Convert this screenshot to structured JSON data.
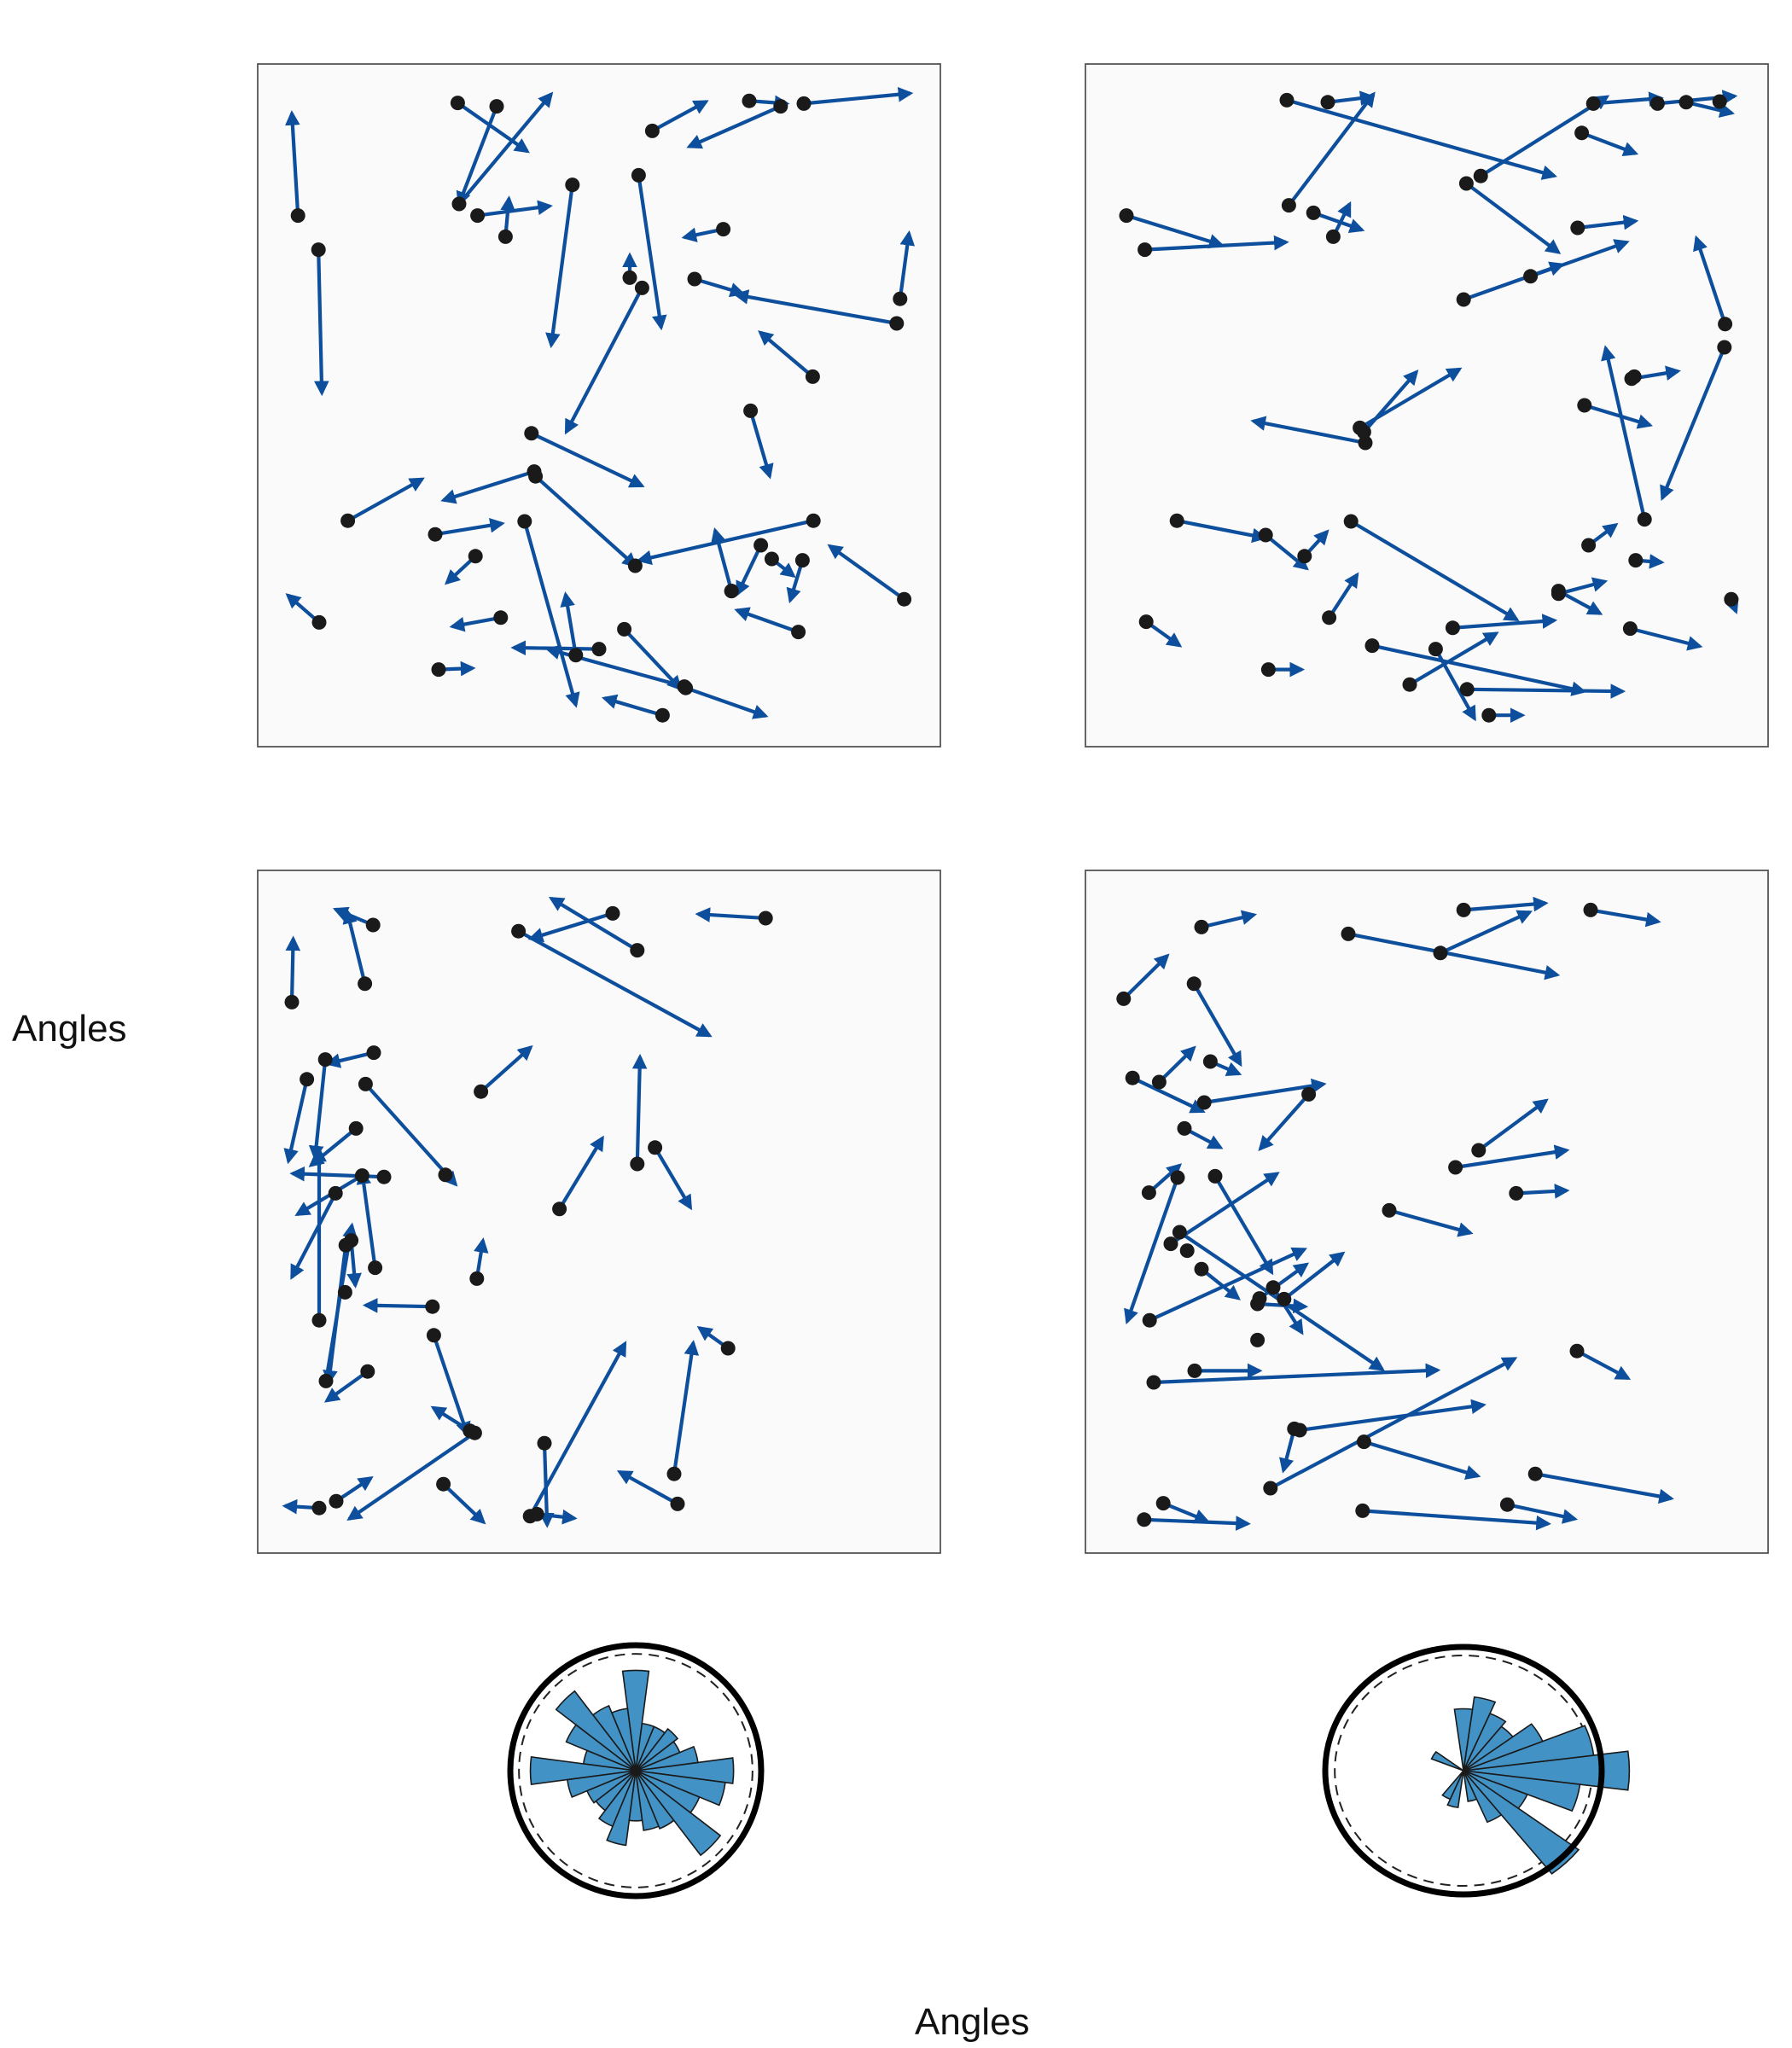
{
  "figure": {
    "ylabel": "Angles",
    "xlabel": "Angles"
  },
  "colors": {
    "arrow": "#0d4f9c",
    "dot": "#1a1a1a",
    "panel_bg": "#fafafa",
    "panel_border": "#555555",
    "rose_fill": "#4292c6",
    "rose_edge": "#1a1a1a",
    "rose_ring": "#000000"
  },
  "chart_data": [
    {
      "type": "scatter",
      "panel": "top-left",
      "xlim": [
        0,
        1
      ],
      "ylim": [
        0,
        1
      ],
      "axes_ticks": false,
      "arrows": [
        [
          0.059,
          0.778,
          0.05,
          0.928
        ],
        [
          0.089,
          0.728,
          0.094,
          0.518
        ],
        [
          0.293,
          0.943,
          0.395,
          0.872
        ],
        [
          0.35,
          0.938,
          0.295,
          0.795
        ],
        [
          0.295,
          0.795,
          0.43,
          0.956
        ],
        [
          0.322,
          0.778,
          0.428,
          0.792
        ],
        [
          0.363,
          0.747,
          0.368,
          0.803
        ],
        [
          0.461,
          0.823,
          0.43,
          0.588
        ],
        [
          0.558,
          0.837,
          0.591,
          0.614
        ],
        [
          0.682,
          0.758,
          0.625,
          0.746
        ],
        [
          0.72,
          0.946,
          0.775,
          0.942
        ],
        [
          0.578,
          0.902,
          0.657,
          0.945
        ],
        [
          0.8,
          0.942,
          0.956,
          0.957
        ],
        [
          0.766,
          0.938,
          0.632,
          0.879
        ],
        [
          0.545,
          0.687,
          0.545,
          0.72
        ],
        [
          0.563,
          0.672,
          0.452,
          0.461
        ],
        [
          0.64,
          0.685,
          0.71,
          0.664
        ],
        [
          0.936,
          0.62,
          0.701,
          0.662
        ],
        [
          0.941,
          0.656,
          0.954,
          0.752
        ],
        [
          0.813,
          0.542,
          0.736,
          0.607
        ],
        [
          0.722,
          0.492,
          0.75,
          0.396
        ],
        [
          0.401,
          0.459,
          0.563,
          0.382
        ],
        [
          0.132,
          0.331,
          0.241,
          0.392
        ],
        [
          0.405,
          0.403,
          0.272,
          0.361
        ],
        [
          0.407,
          0.396,
          0.553,
          0.265
        ],
        [
          0.26,
          0.311,
          0.358,
          0.327
        ],
        [
          0.319,
          0.279,
          0.277,
          0.24
        ],
        [
          0.391,
          0.33,
          0.466,
          0.061
        ],
        [
          0.814,
          0.331,
          0.559,
          0.273
        ],
        [
          0.694,
          0.228,
          0.67,
          0.317
        ],
        [
          0.737,
          0.295,
          0.703,
          0.224
        ],
        [
          0.753,
          0.275,
          0.785,
          0.25
        ],
        [
          0.798,
          0.273,
          0.78,
          0.214
        ],
        [
          0.947,
          0.216,
          0.838,
          0.294
        ],
        [
          0.792,
          0.168,
          0.702,
          0.2
        ],
        [
          0.09,
          0.182,
          0.044,
          0.222
        ],
        [
          0.356,
          0.189,
          0.285,
          0.176
        ],
        [
          0.265,
          0.113,
          0.315,
          0.115
        ],
        [
          0.5,
          0.143,
          0.375,
          0.145
        ],
        [
          0.466,
          0.134,
          0.451,
          0.223
        ],
        [
          0.537,
          0.172,
          0.619,
          0.085
        ],
        [
          0.625,
          0.088,
          0.425,
          0.143
        ],
        [
          0.593,
          0.046,
          0.508,
          0.071
        ],
        [
          0.627,
          0.086,
          0.744,
          0.045
        ]
      ],
      "points_only": [
        [
          0.694,
          0.228
        ],
        [
          0.553,
          0.265
        ]
      ]
    },
    {
      "type": "scatter",
      "panel": "top-right",
      "xlim": [
        0,
        1
      ],
      "ylim": [
        0,
        1
      ],
      "axes_ticks": false,
      "arrows": [
        [
          0.295,
          0.947,
          0.687,
          0.836
        ],
        [
          0.355,
          0.944,
          0.42,
          0.952
        ],
        [
          0.298,
          0.793,
          0.422,
          0.956
        ],
        [
          0.558,
          0.825,
          0.693,
          0.724
        ],
        [
          0.744,
          0.942,
          0.843,
          0.95
        ],
        [
          0.579,
          0.836,
          0.764,
          0.952
        ],
        [
          0.838,
          0.942,
          0.951,
          0.953
        ],
        [
          0.88,
          0.944,
          0.947,
          0.928
        ],
        [
          0.727,
          0.899,
          0.806,
          0.869
        ],
        [
          0.06,
          0.778,
          0.199,
          0.735
        ],
        [
          0.087,
          0.728,
          0.294,
          0.739
        ],
        [
          0.334,
          0.782,
          0.405,
          0.757
        ],
        [
          0.363,
          0.747,
          0.387,
          0.795
        ],
        [
          0.721,
          0.76,
          0.806,
          0.77
        ],
        [
          0.652,
          0.689,
          0.793,
          0.739
        ],
        [
          0.554,
          0.655,
          0.698,
          0.706
        ],
        [
          0.937,
          0.619,
          0.895,
          0.745
        ],
        [
          0.936,
          0.585,
          0.845,
          0.364
        ],
        [
          0.8,
          0.539,
          0.868,
          0.55
        ],
        [
          0.731,
          0.5,
          0.827,
          0.471
        ],
        [
          0.819,
          0.333,
          0.762,
          0.584
        ],
        [
          0.408,
          0.461,
          0.485,
          0.549
        ],
        [
          0.41,
          0.445,
          0.246,
          0.477
        ],
        [
          0.402,
          0.467,
          0.548,
          0.553
        ],
        [
          0.134,
          0.331,
          0.262,
          0.306
        ],
        [
          0.264,
          0.31,
          0.324,
          0.261
        ],
        [
          0.321,
          0.279,
          0.354,
          0.315
        ],
        [
          0.389,
          0.33,
          0.632,
          0.186
        ],
        [
          0.737,
          0.295,
          0.777,
          0.325
        ],
        [
          0.806,
          0.273,
          0.844,
          0.27
        ],
        [
          0.693,
          0.224,
          0.761,
          0.242
        ],
        [
          0.693,
          0.228,
          0.754,
          0.195
        ],
        [
          0.357,
          0.189,
          0.398,
          0.252
        ],
        [
          0.089,
          0.183,
          0.138,
          0.148
        ],
        [
          0.268,
          0.113,
          0.317,
          0.113
        ],
        [
          0.42,
          0.148,
          0.73,
          0.081
        ],
        [
          0.538,
          0.174,
          0.687,
          0.185
        ],
        [
          0.513,
          0.143,
          0.57,
          0.041
        ],
        [
          0.591,
          0.046,
          0.64,
          0.046
        ],
        [
          0.559,
          0.084,
          0.787,
          0.081
        ],
        [
          0.475,
          0.091,
          0.602,
          0.166
        ],
        [
          0.798,
          0.173,
          0.9,
          0.147
        ],
        [
          0.946,
          0.216,
          0.953,
          0.198
        ]
      ],
      "points_only": [
        [
          0.804,
          0.542
        ],
        [
          0.929,
          0.945
        ]
      ]
    },
    {
      "type": "scatter",
      "panel": "bottom-left",
      "xlim": [
        0,
        1
      ],
      "ylim": [
        0,
        1
      ],
      "axes_ticks": false,
      "arrows": [
        [
          0.05,
          0.807,
          0.052,
          0.9
        ],
        [
          0.169,
          0.92,
          0.114,
          0.943
        ],
        [
          0.157,
          0.834,
          0.131,
          0.94
        ],
        [
          0.744,
          0.93,
          0.645,
          0.936
        ],
        [
          0.556,
          0.883,
          0.43,
          0.959
        ],
        [
          0.52,
          0.937,
          0.4,
          0.9
        ],
        [
          0.382,
          0.911,
          0.662,
          0.758
        ],
        [
          0.072,
          0.694,
          0.045,
          0.574
        ],
        [
          0.17,
          0.733,
          0.103,
          0.717
        ],
        [
          0.099,
          0.723,
          0.084,
          0.579
        ],
        [
          0.158,
          0.687,
          0.29,
          0.54
        ],
        [
          0.144,
          0.622,
          0.078,
          0.568
        ],
        [
          0.327,
          0.676,
          0.4,
          0.741
        ],
        [
          0.556,
          0.57,
          0.56,
          0.727
        ],
        [
          0.442,
          0.504,
          0.505,
          0.608
        ],
        [
          0.582,
          0.594,
          0.634,
          0.506
        ],
        [
          0.153,
          0.553,
          0.058,
          0.496
        ],
        [
          0.185,
          0.551,
          0.051,
          0.556
        ],
        [
          0.09,
          0.341,
          0.09,
          0.591
        ],
        [
          0.114,
          0.527,
          0.05,
          0.404
        ],
        [
          0.137,
          0.458,
          0.143,
          0.392
        ],
        [
          0.129,
          0.451,
          0.104,
          0.25
        ],
        [
          0.172,
          0.418,
          0.153,
          0.558
        ],
        [
          0.256,
          0.361,
          0.158,
          0.363
        ],
        [
          0.1,
          0.252,
          0.138,
          0.48
        ],
        [
          0.161,
          0.266,
          0.101,
          0.223
        ],
        [
          0.258,
          0.319,
          0.307,
          0.174
        ],
        [
          0.321,
          0.402,
          0.33,
          0.458
        ],
        [
          0.311,
          0.179,
          0.257,
          0.213
        ],
        [
          0.09,
          0.066,
          0.04,
          0.069
        ],
        [
          0.115,
          0.076,
          0.166,
          0.11
        ],
        [
          0.318,
          0.176,
          0.134,
          0.05
        ],
        [
          0.272,
          0.101,
          0.331,
          0.045
        ],
        [
          0.409,
          0.057,
          0.464,
          0.051
        ],
        [
          0.399,
          0.054,
          0.538,
          0.307
        ],
        [
          0.61,
          0.116,
          0.638,
          0.308
        ],
        [
          0.689,
          0.3,
          0.647,
          0.33
        ],
        [
          0.615,
          0.072,
          0.53,
          0.119
        ],
        [
          0.42,
          0.161,
          0.424,
          0.041
        ]
      ],
      "points_only": [
        [
          0.275,
          0.554
        ],
        [
          0.128,
          0.382
        ]
      ]
    },
    {
      "type": "scatter",
      "panel": "bottom-right",
      "xlim": [
        0,
        1
      ],
      "ylim": [
        0,
        1
      ],
      "axes_ticks": false,
      "arrows": [
        [
          0.17,
          0.917,
          0.247,
          0.935
        ],
        [
          0.52,
          0.879,
          0.651,
          0.939
        ],
        [
          0.554,
          0.942,
          0.674,
          0.952
        ],
        [
          0.385,
          0.907,
          0.691,
          0.847
        ],
        [
          0.74,
          0.942,
          0.839,
          0.925
        ],
        [
          0.056,
          0.812,
          0.12,
          0.875
        ],
        [
          0.159,
          0.834,
          0.227,
          0.716
        ],
        [
          0.069,
          0.696,
          0.172,
          0.647
        ],
        [
          0.108,
          0.69,
          0.159,
          0.74
        ],
        [
          0.183,
          0.72,
          0.225,
          0.702
        ],
        [
          0.174,
          0.66,
          0.349,
          0.687
        ],
        [
          0.327,
          0.672,
          0.256,
          0.592
        ],
        [
          0.145,
          0.622,
          0.198,
          0.594
        ],
        [
          0.576,
          0.59,
          0.675,
          0.663
        ],
        [
          0.542,
          0.565,
          0.705,
          0.59
        ],
        [
          0.631,
          0.527,
          0.705,
          0.531
        ],
        [
          0.445,
          0.502,
          0.564,
          0.469
        ],
        [
          0.093,
          0.528,
          0.138,
          0.568
        ],
        [
          0.135,
          0.55,
          0.061,
          0.339
        ],
        [
          0.19,
          0.552,
          0.273,
          0.411
        ],
        [
          0.125,
          0.453,
          0.281,
          0.556
        ],
        [
          0.138,
          0.47,
          0.435,
          0.269
        ],
        [
          0.17,
          0.416,
          0.224,
          0.373
        ],
        [
          0.252,
          0.365,
          0.322,
          0.361
        ],
        [
          0.255,
          0.373,
          0.324,
          0.423
        ],
        [
          0.291,
          0.372,
          0.377,
          0.439
        ],
        [
          0.275,
          0.389,
          0.317,
          0.323
        ],
        [
          0.094,
          0.341,
          0.321,
          0.445
        ],
        [
          0.16,
          0.267,
          0.255,
          0.267
        ],
        [
          0.1,
          0.25,
          0.516,
          0.268
        ],
        [
          0.72,
          0.296,
          0.795,
          0.256
        ],
        [
          0.314,
          0.18,
          0.583,
          0.217
        ],
        [
          0.408,
          0.163,
          0.575,
          0.113
        ],
        [
          0.306,
          0.182,
          0.29,
          0.121
        ],
        [
          0.271,
          0.095,
          0.629,
          0.285
        ],
        [
          0.114,
          0.073,
          0.178,
          0.047
        ],
        [
          0.086,
          0.049,
          0.238,
          0.043
        ],
        [
          0.406,
          0.062,
          0.678,
          0.043
        ],
        [
          0.618,
          0.071,
          0.717,
          0.05
        ],
        [
          0.659,
          0.116,
          0.858,
          0.08
        ]
      ],
      "points_only": [
        [
          0.149,
          0.443
        ],
        [
          0.252,
          0.312
        ]
      ]
    },
    {
      "type": "bar",
      "subtype": "polar-rose",
      "panel": "rose-left",
      "direction_unit": "degrees",
      "bin_width_deg": 15,
      "angles_deg": [
        0,
        15,
        30,
        45,
        60,
        75,
        90,
        105,
        120,
        135,
        150,
        165,
        180,
        195,
        210,
        225,
        240,
        255,
        270,
        285,
        300,
        315,
        330,
        345
      ],
      "values": [
        0.78,
        0.5,
        0.38,
        0.42,
        0.38,
        0.38,
        0.8,
        0.5,
        0.56,
        0.8,
        0.6,
        0.42,
        0.84,
        0.55,
        0.42,
        0.4,
        0.48,
        0.6,
        0.4,
        0.48,
        0.5,
        0.85,
        0.55,
        0.72
      ],
      "reference_ring": 0.95
    },
    {
      "type": "bar",
      "subtype": "polar-rose",
      "panel": "rose-right",
      "direction_unit": "degrees",
      "bin_width_deg": 15,
      "angles_deg": [
        0,
        15,
        30,
        45,
        60,
        75,
        90,
        105,
        120,
        135,
        150,
        165,
        180,
        195,
        210,
        225,
        240,
        255,
        270,
        285,
        300,
        315,
        330,
        345
      ],
      "values": [
        1.2,
        0.95,
        0.62,
        0.45,
        0.5,
        0.6,
        0.5,
        0.0,
        0.0,
        0.0,
        0.25,
        0.0,
        0.0,
        0.0,
        0.0,
        0.0,
        0.25,
        0.3,
        0.0,
        0.25,
        0.45,
        1.05,
        0.5,
        0.85
      ],
      "reference_ring": 0.95
    }
  ]
}
